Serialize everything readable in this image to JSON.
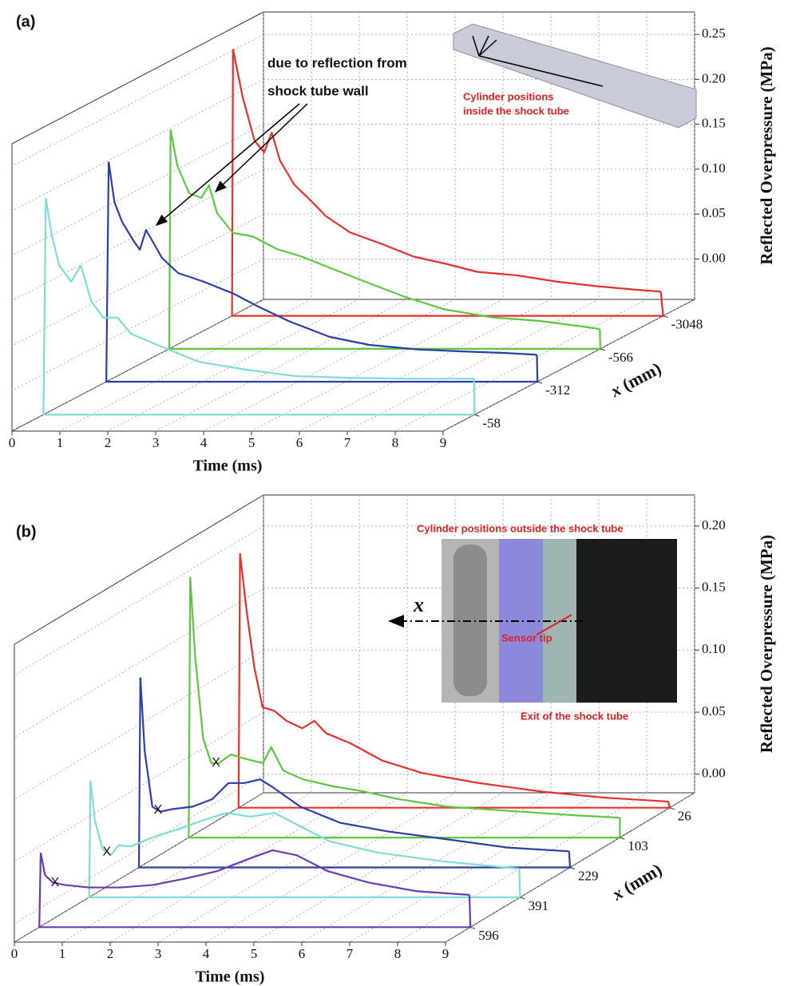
{
  "chart_data": [
    {
      "type": "waterfall",
      "panel_label": "(a)",
      "xlabel": "Time (ms)",
      "zlabel": "Reflected Overpressure (MPa)",
      "depth_label": {
        "symbol": "x",
        "unit": "(mm)"
      },
      "xlim": [
        0,
        9
      ],
      "xticks": [
        0,
        1,
        2,
        3,
        4,
        5,
        6,
        7,
        8,
        9
      ],
      "ylim": [
        -0.045,
        0.275
      ],
      "yticks": [
        {
          "value": 0,
          "label": "0.00"
        },
        {
          "value": 0.05,
          "label": "0.05"
        },
        {
          "value": 0.1,
          "label": "0.10"
        },
        {
          "value": 0.15,
          "label": "0.15"
        },
        {
          "value": 0.2,
          "label": "0.20"
        },
        {
          "value": 0.25,
          "label": "0.25"
        }
      ],
      "grid": true,
      "annotations": [
        "due to reflection from",
        "shock tube wall"
      ],
      "inset_text": [
        "Cylinder positions",
        "inside the shock tube"
      ],
      "series": [
        {
          "name": "-3048",
          "color": "#e8302a",
          "x": [
            0.02,
            0.22,
            0.47,
            0.67,
            0.83,
            1.0,
            1.3,
            1.63,
            1.96,
            2.46,
            3.13,
            3.79,
            4.46,
            5.12,
            5.96,
            6.79,
            7.62,
            8.45,
            8.95
          ],
          "values": [
            0.252,
            0.199,
            0.15,
            0.137,
            0.159,
            0.128,
            0.101,
            0.084,
            0.066,
            0.048,
            0.035,
            0.021,
            0.013,
            0.004,
            0.0,
            -0.007,
            -0.012,
            -0.016,
            -0.018
          ]
        },
        {
          "name": "-566",
          "color": "#5ec640",
          "x": [
            0.03,
            0.17,
            0.42,
            0.67,
            0.83,
            1.0,
            1.33,
            1.75,
            2.25,
            2.75,
            3.41,
            4.08,
            4.91,
            5.74,
            6.74,
            7.74,
            8.74,
            8.99
          ],
          "values": [
            0.199,
            0.159,
            0.128,
            0.123,
            0.137,
            0.106,
            0.084,
            0.08,
            0.066,
            0.058,
            0.044,
            0.03,
            0.013,
            -0.001,
            -0.01,
            -0.014,
            -0.021,
            -0.023
          ]
        },
        {
          "name": "-312",
          "color": "#2b3fa8",
          "x": [
            0.05,
            0.17,
            0.33,
            0.58,
            0.7,
            0.83,
            0.97,
            1.16,
            1.5,
            2.0,
            2.66,
            3.16,
            3.83,
            4.66,
            5.49,
            6.49,
            7.32,
            8.32,
            8.99
          ],
          "values": [
            0.2,
            0.155,
            0.133,
            0.111,
            0.102,
            0.124,
            0.111,
            0.093,
            0.076,
            0.067,
            0.053,
            0.039,
            0.022,
            0.005,
            -0.004,
            -0.009,
            -0.011,
            -0.013,
            -0.015
          ]
        },
        {
          "name": "-58",
          "color": "#7fdcd6",
          "x": [
            0.05,
            0.17,
            0.33,
            0.58,
            0.78,
            1.0,
            1.25,
            1.55,
            1.83,
            2.41,
            3.24,
            4.24,
            5.24,
            6.41,
            7.57,
            8.99
          ],
          "values": [
            0.196,
            0.156,
            0.121,
            0.103,
            0.121,
            0.081,
            0.063,
            0.063,
            0.045,
            0.032,
            0.014,
            0.005,
            -0.002,
            -0.004,
            -0.005,
            -0.005
          ]
        }
      ]
    },
    {
      "type": "waterfall",
      "panel_label": "(b)",
      "xlabel": "Time (ms)",
      "zlabel": "Reflected Overpressure (MPa)",
      "depth_label": {
        "symbol": "x",
        "unit": "(mm)"
      },
      "xlim": [
        0,
        9
      ],
      "xticks": [
        0,
        1,
        2,
        3,
        4,
        5,
        6,
        7,
        8,
        9
      ],
      "ylim": [
        -0.015,
        0.225
      ],
      "yticks": [
        {
          "value": 0,
          "label": "0.00"
        },
        {
          "value": 0.05,
          "label": "0.05"
        },
        {
          "value": 0.1,
          "label": "0.10"
        },
        {
          "value": 0.15,
          "label": "0.15"
        },
        {
          "value": 0.2,
          "label": "0.20"
        }
      ],
      "grid": true,
      "marker_label": "X",
      "inset_text": [
        "Cylinder positions outside the shock tube",
        "Sensor tip",
        "Exit of the shock tube",
        "x"
      ],
      "series": [
        {
          "name": "26",
          "color": "#e8302a",
          "x": [
            0.03,
            0.17,
            0.33,
            0.5,
            0.75,
            1.0,
            1.33,
            1.58,
            1.83,
            2.33,
            3.0,
            3.83,
            5.0,
            6.33,
            7.67,
            8.97
          ],
          "values": [
            0.19,
            0.143,
            0.098,
            0.066,
            0.063,
            0.055,
            0.049,
            0.055,
            0.045,
            0.037,
            0.023,
            0.013,
            0.005,
            -0.002,
            -0.007,
            -0.01
          ]
        },
        {
          "name": "103",
          "color": "#5ec640",
          "marker_t": 0.57,
          "x": [
            0.03,
            0.13,
            0.3,
            0.47,
            0.63,
            0.88,
            1.13,
            1.55,
            1.72,
            1.97,
            2.38,
            3.05,
            3.55,
            4.38,
            5.38,
            6.88,
            8.05,
            9.0
          ],
          "values": [
            0.195,
            0.133,
            0.065,
            0.045,
            0.045,
            0.052,
            0.049,
            0.045,
            0.058,
            0.039,
            0.032,
            0.026,
            0.023,
            0.016,
            0.01,
            0.006,
            0.003,
            0.001
          ]
        },
        {
          "name": "229",
          "color": "#2b3fa8",
          "marker_t": 0.4,
          "x": [
            0.03,
            0.12,
            0.28,
            0.45,
            0.7,
            1.12,
            1.53,
            1.87,
            2.2,
            2.53,
            2.78,
            3.37,
            4.2,
            5.2,
            6.37,
            7.7,
            8.98
          ],
          "values": [
            0.138,
            0.079,
            0.034,
            0.03,
            0.032,
            0.034,
            0.04,
            0.053,
            0.053,
            0.056,
            0.05,
            0.034,
            0.021,
            0.014,
            0.008,
            0.001,
            -0.002
          ]
        },
        {
          "name": "391",
          "color": "#7fdcd6",
          "marker_t": 0.37,
          "x": [
            0.03,
            0.12,
            0.28,
            0.45,
            0.62,
            0.87,
            1.37,
            1.87,
            2.37,
            2.87,
            3.37,
            3.87,
            4.37,
            5.03,
            6.03,
            7.37,
            8.98
          ],
          "values": [
            0.079,
            0.047,
            0.024,
            0.019,
            0.027,
            0.026,
            0.034,
            0.04,
            0.047,
            0.053,
            0.05,
            0.053,
            0.043,
            0.03,
            0.021,
            0.014,
            0.008
          ]
        },
        {
          "name": "596",
          "color": "#6a3bb0",
          "marker_t": 0.33,
          "x": [
            0.03,
            0.12,
            0.28,
            0.53,
            1.03,
            1.7,
            2.37,
            3.03,
            3.7,
            4.37,
            4.87,
            5.37,
            6.03,
            6.87,
            7.87,
            8.98
          ],
          "values": [
            0.045,
            0.027,
            0.021,
            0.019,
            0.017,
            0.017,
            0.019,
            0.024,
            0.03,
            0.04,
            0.047,
            0.043,
            0.03,
            0.021,
            0.014,
            0.011
          ]
        }
      ]
    }
  ]
}
